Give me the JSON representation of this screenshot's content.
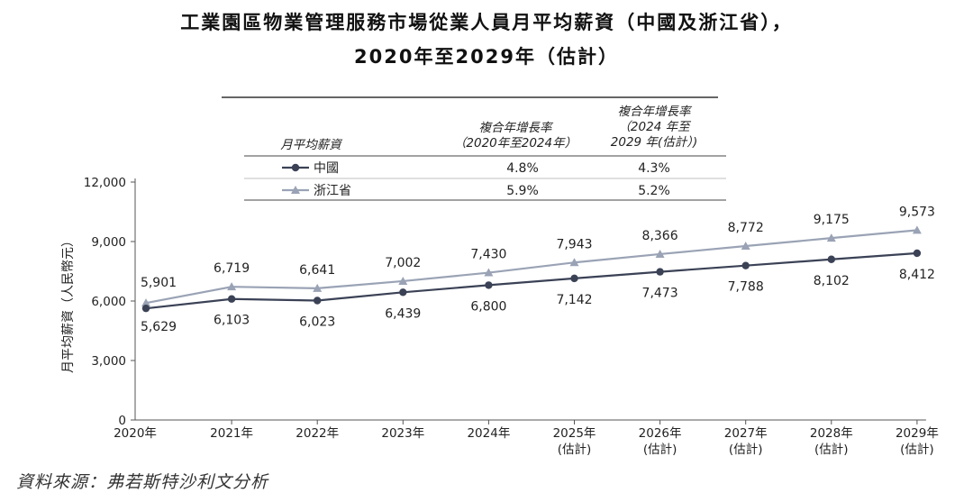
{
  "title_line1": "工業園區物業管理服務市場從業人員月平均薪資（中國及浙江省），",
  "title_line2": "2020年至2029年（估計）",
  "source": "資料來源：弗若斯特沙利文分析",
  "legend_table": {
    "header_label": "月平均薪資",
    "col1_header": [
      "複合年增長率",
      "（2020年至2024年）"
    ],
    "col2_header": [
      "複合年增長率",
      "（2024 年至",
      "2029 年(估計）)"
    ],
    "rows": [
      {
        "name": "中國",
        "cagr1": "4.8%",
        "cagr2": "4.3%"
      },
      {
        "name": "浙江省",
        "cagr1": "5.9%",
        "cagr2": "5.2%"
      }
    ]
  },
  "chart_data": {
    "type": "line",
    "ylabel": "月平均薪資（人民幣元）",
    "ylim": [
      0,
      12000
    ],
    "yticks": [
      "0",
      "3,000",
      "6,000",
      "9,000",
      "12,000"
    ],
    "ytick_values": [
      0,
      3000,
      6000,
      9000,
      12000
    ],
    "categories": [
      [
        "2020年"
      ],
      [
        "2021年"
      ],
      [
        "2022年"
      ],
      [
        "2023年"
      ],
      [
        "2024年"
      ],
      [
        "2025年",
        "(估計)"
      ],
      [
        "2026年",
        "(估計)"
      ],
      [
        "2027年",
        "(估計)"
      ],
      [
        "2028年",
        "(估計)"
      ],
      [
        "2029年",
        "(估計)"
      ]
    ],
    "series": [
      {
        "name": "中國",
        "color": "#3b4256",
        "marker": "circle",
        "values": [
          5629,
          6103,
          6023,
          6439,
          6800,
          7142,
          7473,
          7788,
          8102,
          8412
        ],
        "labels": [
          "5,629",
          "6,103",
          "6,023",
          "6,439",
          "6,800",
          "7,142",
          "7,473",
          "7,788",
          "8,102",
          "8,412"
        ]
      },
      {
        "name": "浙江省",
        "color": "#9aa3b5",
        "marker": "triangle",
        "values": [
          5901,
          6719,
          6641,
          7002,
          7430,
          7943,
          8366,
          8772,
          9175,
          9573
        ],
        "labels": [
          "5,901",
          "6,719",
          "6,641",
          "7,002",
          "7,430",
          "7,943",
          "8,366",
          "8,772",
          "9,175",
          "9,573"
        ]
      }
    ]
  }
}
